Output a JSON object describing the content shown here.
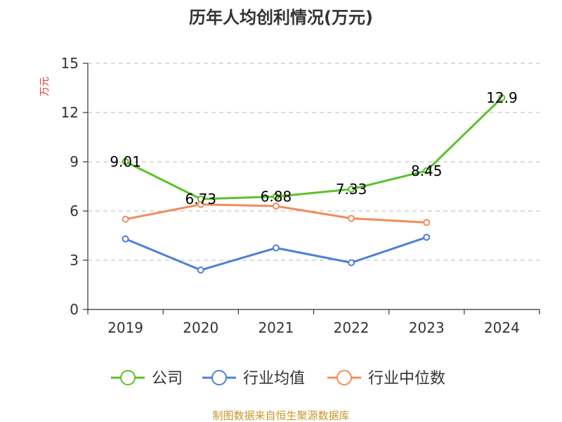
{
  "chart_data": {
    "type": "line",
    "title": "历年人均创利情况(万元)",
    "ylabel": "万元",
    "xlabel": "",
    "categories": [
      "2019",
      "2020",
      "2021",
      "2022",
      "2023",
      "2024"
    ],
    "ylim": [
      0,
      15
    ],
    "yticks": [
      0,
      3,
      6,
      9,
      12,
      15
    ],
    "grid": true,
    "legend_position": "bottom",
    "series": [
      {
        "name": "公司",
        "color": "#5cc12a",
        "values": [
          9.01,
          6.73,
          6.88,
          7.33,
          8.45,
          12.9
        ],
        "labels": [
          "9.01",
          "6.73",
          "6.88",
          "7.33",
          "8.45",
          "12.9"
        ]
      },
      {
        "name": "行业均值",
        "color": "#4f7fd9",
        "values": [
          4.3,
          2.4,
          3.75,
          2.85,
          4.4,
          null
        ]
      },
      {
        "name": "行业中位数",
        "color": "#f28c5a",
        "values": [
          5.5,
          6.4,
          6.3,
          5.55,
          5.3,
          null
        ]
      }
    ]
  },
  "source": "制图数据来自恒生聚源数据库"
}
